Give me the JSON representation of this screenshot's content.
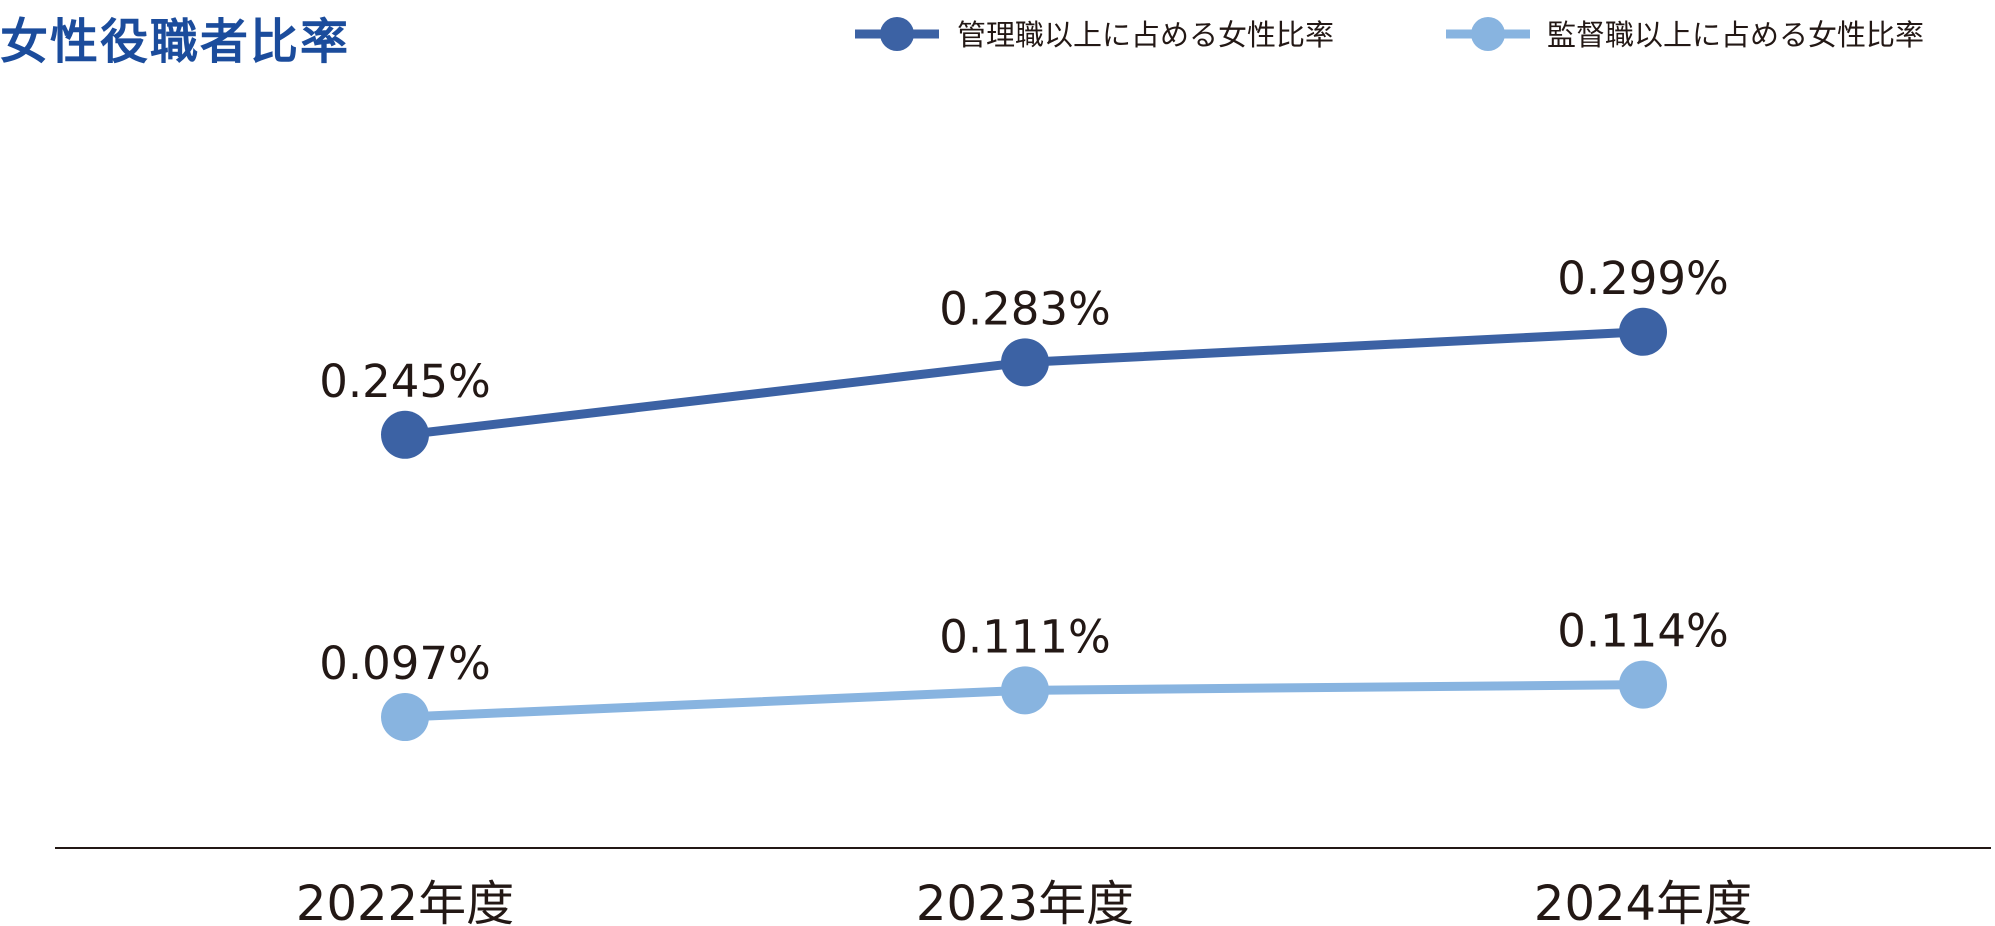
{
  "chart_data": {
    "type": "line",
    "title": "女性役職者比率",
    "categories": [
      "2022年度",
      "2023年度",
      "2024年度"
    ],
    "series": [
      {
        "name": "管理職以上に占める女性比率",
        "values": [
          0.245,
          0.283,
          0.299
        ],
        "labels": [
          "0.245%",
          "0.283%",
          "0.299%"
        ],
        "color": "#3c62a4"
      },
      {
        "name": "監督職以上に占める女性比率",
        "values": [
          0.097,
          0.111,
          0.114
        ],
        "labels": [
          "0.097%",
          "0.111%",
          "0.114%"
        ],
        "color": "#88b4e0"
      }
    ],
    "unit": "%",
    "grid": false,
    "legend": "top-right",
    "title_color": "#1b4c9c"
  }
}
